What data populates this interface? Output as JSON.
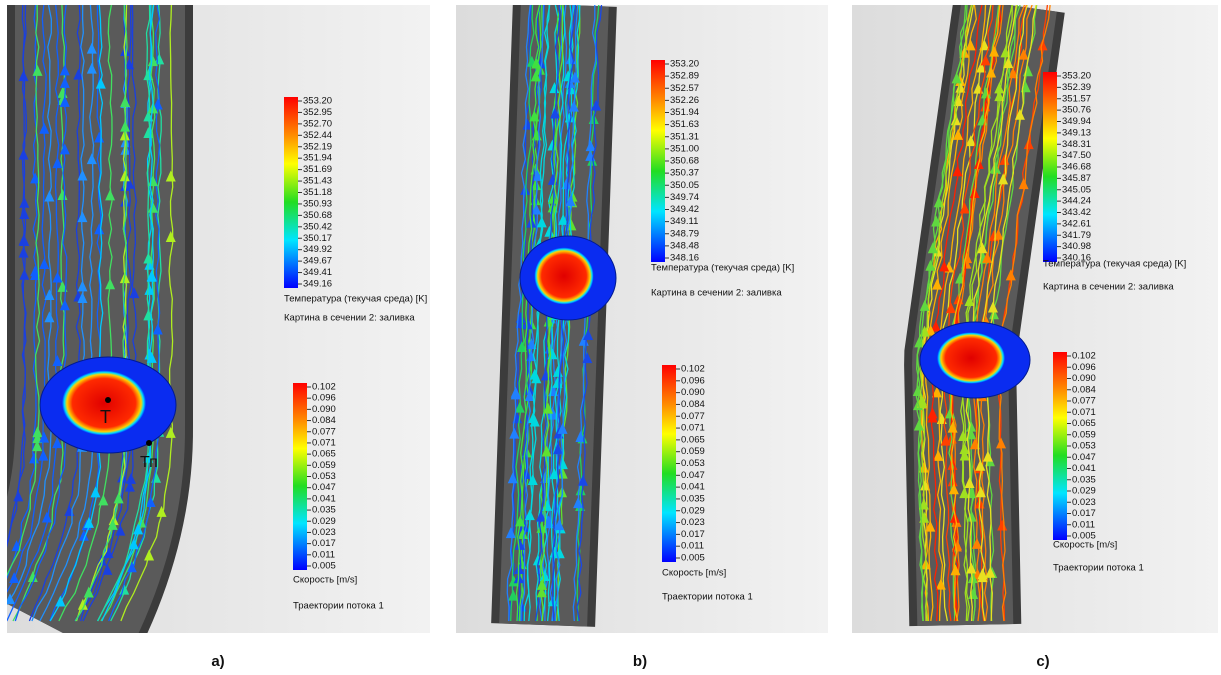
{
  "panels": [
    {
      "label": "a)",
      "annotations": [
        "T",
        "Тп"
      ],
      "temperature_legend": {
        "title": "Температура (текучая среда) [K]",
        "ticks": [
          "353.20",
          "352.95",
          "352.70",
          "352.44",
          "352.19",
          "351.94",
          "351.69",
          "351.43",
          "351.18",
          "350.93",
          "350.68",
          "350.42",
          "350.17",
          "349.92",
          "349.67",
          "349.41",
          "349.16"
        ]
      },
      "section_label": "Картина в сечении 2: заливка",
      "velocity_legend": {
        "title": "Скорость [m/s]",
        "ticks": [
          "0.102",
          "0.096",
          "0.090",
          "0.084",
          "0.077",
          "0.071",
          "0.065",
          "0.059",
          "0.053",
          "0.047",
          "0.041",
          "0.035",
          "0.029",
          "0.023",
          "0.017",
          "0.011",
          "0.005"
        ]
      },
      "trajectories_label": "Траектории потока 1"
    },
    {
      "label": "b)",
      "temperature_legend": {
        "title": "Температура (текучая среда) [K]",
        "ticks": [
          "353.20",
          "352.89",
          "352.57",
          "352.26",
          "351.94",
          "351.63",
          "351.31",
          "351.00",
          "350.68",
          "350.37",
          "350.05",
          "349.74",
          "349.42",
          "349.11",
          "348.79",
          "348.48",
          "348.16"
        ]
      },
      "section_label": "Картина в сечении 2: заливка",
      "velocity_legend": {
        "title": "Скорость [m/s]",
        "ticks": [
          "0.102",
          "0.096",
          "0.090",
          "0.084",
          "0.077",
          "0.071",
          "0.065",
          "0.059",
          "0.053",
          "0.047",
          "0.041",
          "0.035",
          "0.029",
          "0.023",
          "0.017",
          "0.011",
          "0.005"
        ]
      },
      "trajectories_label": "Траектории потока 1"
    },
    {
      "label": "c)",
      "temperature_legend": {
        "title": "Температура (текучая среда) [K]",
        "ticks": [
          "353.20",
          "352.39",
          "351.57",
          "350.76",
          "349.94",
          "349.13",
          "348.31",
          "347.50",
          "346.68",
          "345.87",
          "345.05",
          "344.24",
          "343.42",
          "342.61",
          "341.79",
          "340.98",
          "340.16"
        ]
      },
      "section_label": "Картина в сечении 2: заливка",
      "velocity_legend": {
        "title": "Скорость [m/s]",
        "ticks": [
          "0.102",
          "0.096",
          "0.090",
          "0.084",
          "0.077",
          "0.071",
          "0.065",
          "0.059",
          "0.053",
          "0.047",
          "0.041",
          "0.035",
          "0.029",
          "0.023",
          "0.017",
          "0.011",
          "0.005"
        ]
      },
      "trajectories_label": "Траектории потока 1"
    }
  ]
}
